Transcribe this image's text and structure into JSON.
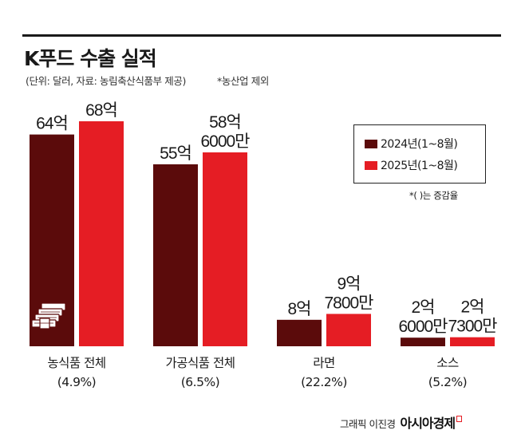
{
  "header": {
    "title": "K푸드 수출 실적",
    "source_note": "(단위: 달러, 자료: 농림축산식품부 제공)",
    "farm_note": "*농산업 제외"
  },
  "legend": {
    "items": [
      {
        "label": "2024년(1~8월)",
        "color": "#5b0b0b"
      },
      {
        "label": "2025년(1~8월)",
        "color": "#e51d24"
      }
    ],
    "note": "*(  )는 증감율"
  },
  "chart_data": {
    "type": "bar",
    "title": "K푸드 수출 실적",
    "unit": "달러",
    "categories": [
      "농식품 전체",
      "가공식품 전체",
      "라면",
      "소스"
    ],
    "growth_labels": [
      "(4.9%)",
      "(6.5%)",
      "(22.2%)",
      "(5.2%)"
    ],
    "growth_rates": [
      4.9,
      6.5,
      22.2,
      5.2
    ],
    "series": [
      {
        "name": "2024년(1~8월)",
        "color": "#5b0b0b",
        "values": [
          6400000000,
          5500000000,
          800000000,
          260000000
        ],
        "labels": [
          [
            "64억"
          ],
          [
            "55억"
          ],
          [
            "8억"
          ],
          [
            "2억",
            "6000만"
          ]
        ]
      },
      {
        "name": "2025년(1~8월)",
        "color": "#e51d24",
        "values": [
          6800000000,
          5860000000,
          978000000,
          273000000
        ],
        "labels": [
          [
            "68억"
          ],
          [
            "58억",
            "6000만"
          ],
          [
            "9억",
            "7800만"
          ],
          [
            "2억",
            "7300만"
          ]
        ]
      }
    ],
    "ylim": [
      0,
      6800000000
    ],
    "grid": false,
    "legend_position": "top-right"
  },
  "icons": {
    "money_stack": "money-stack-icon"
  },
  "credit": {
    "author": "그래픽 이진경",
    "brand": "아시아경제"
  }
}
